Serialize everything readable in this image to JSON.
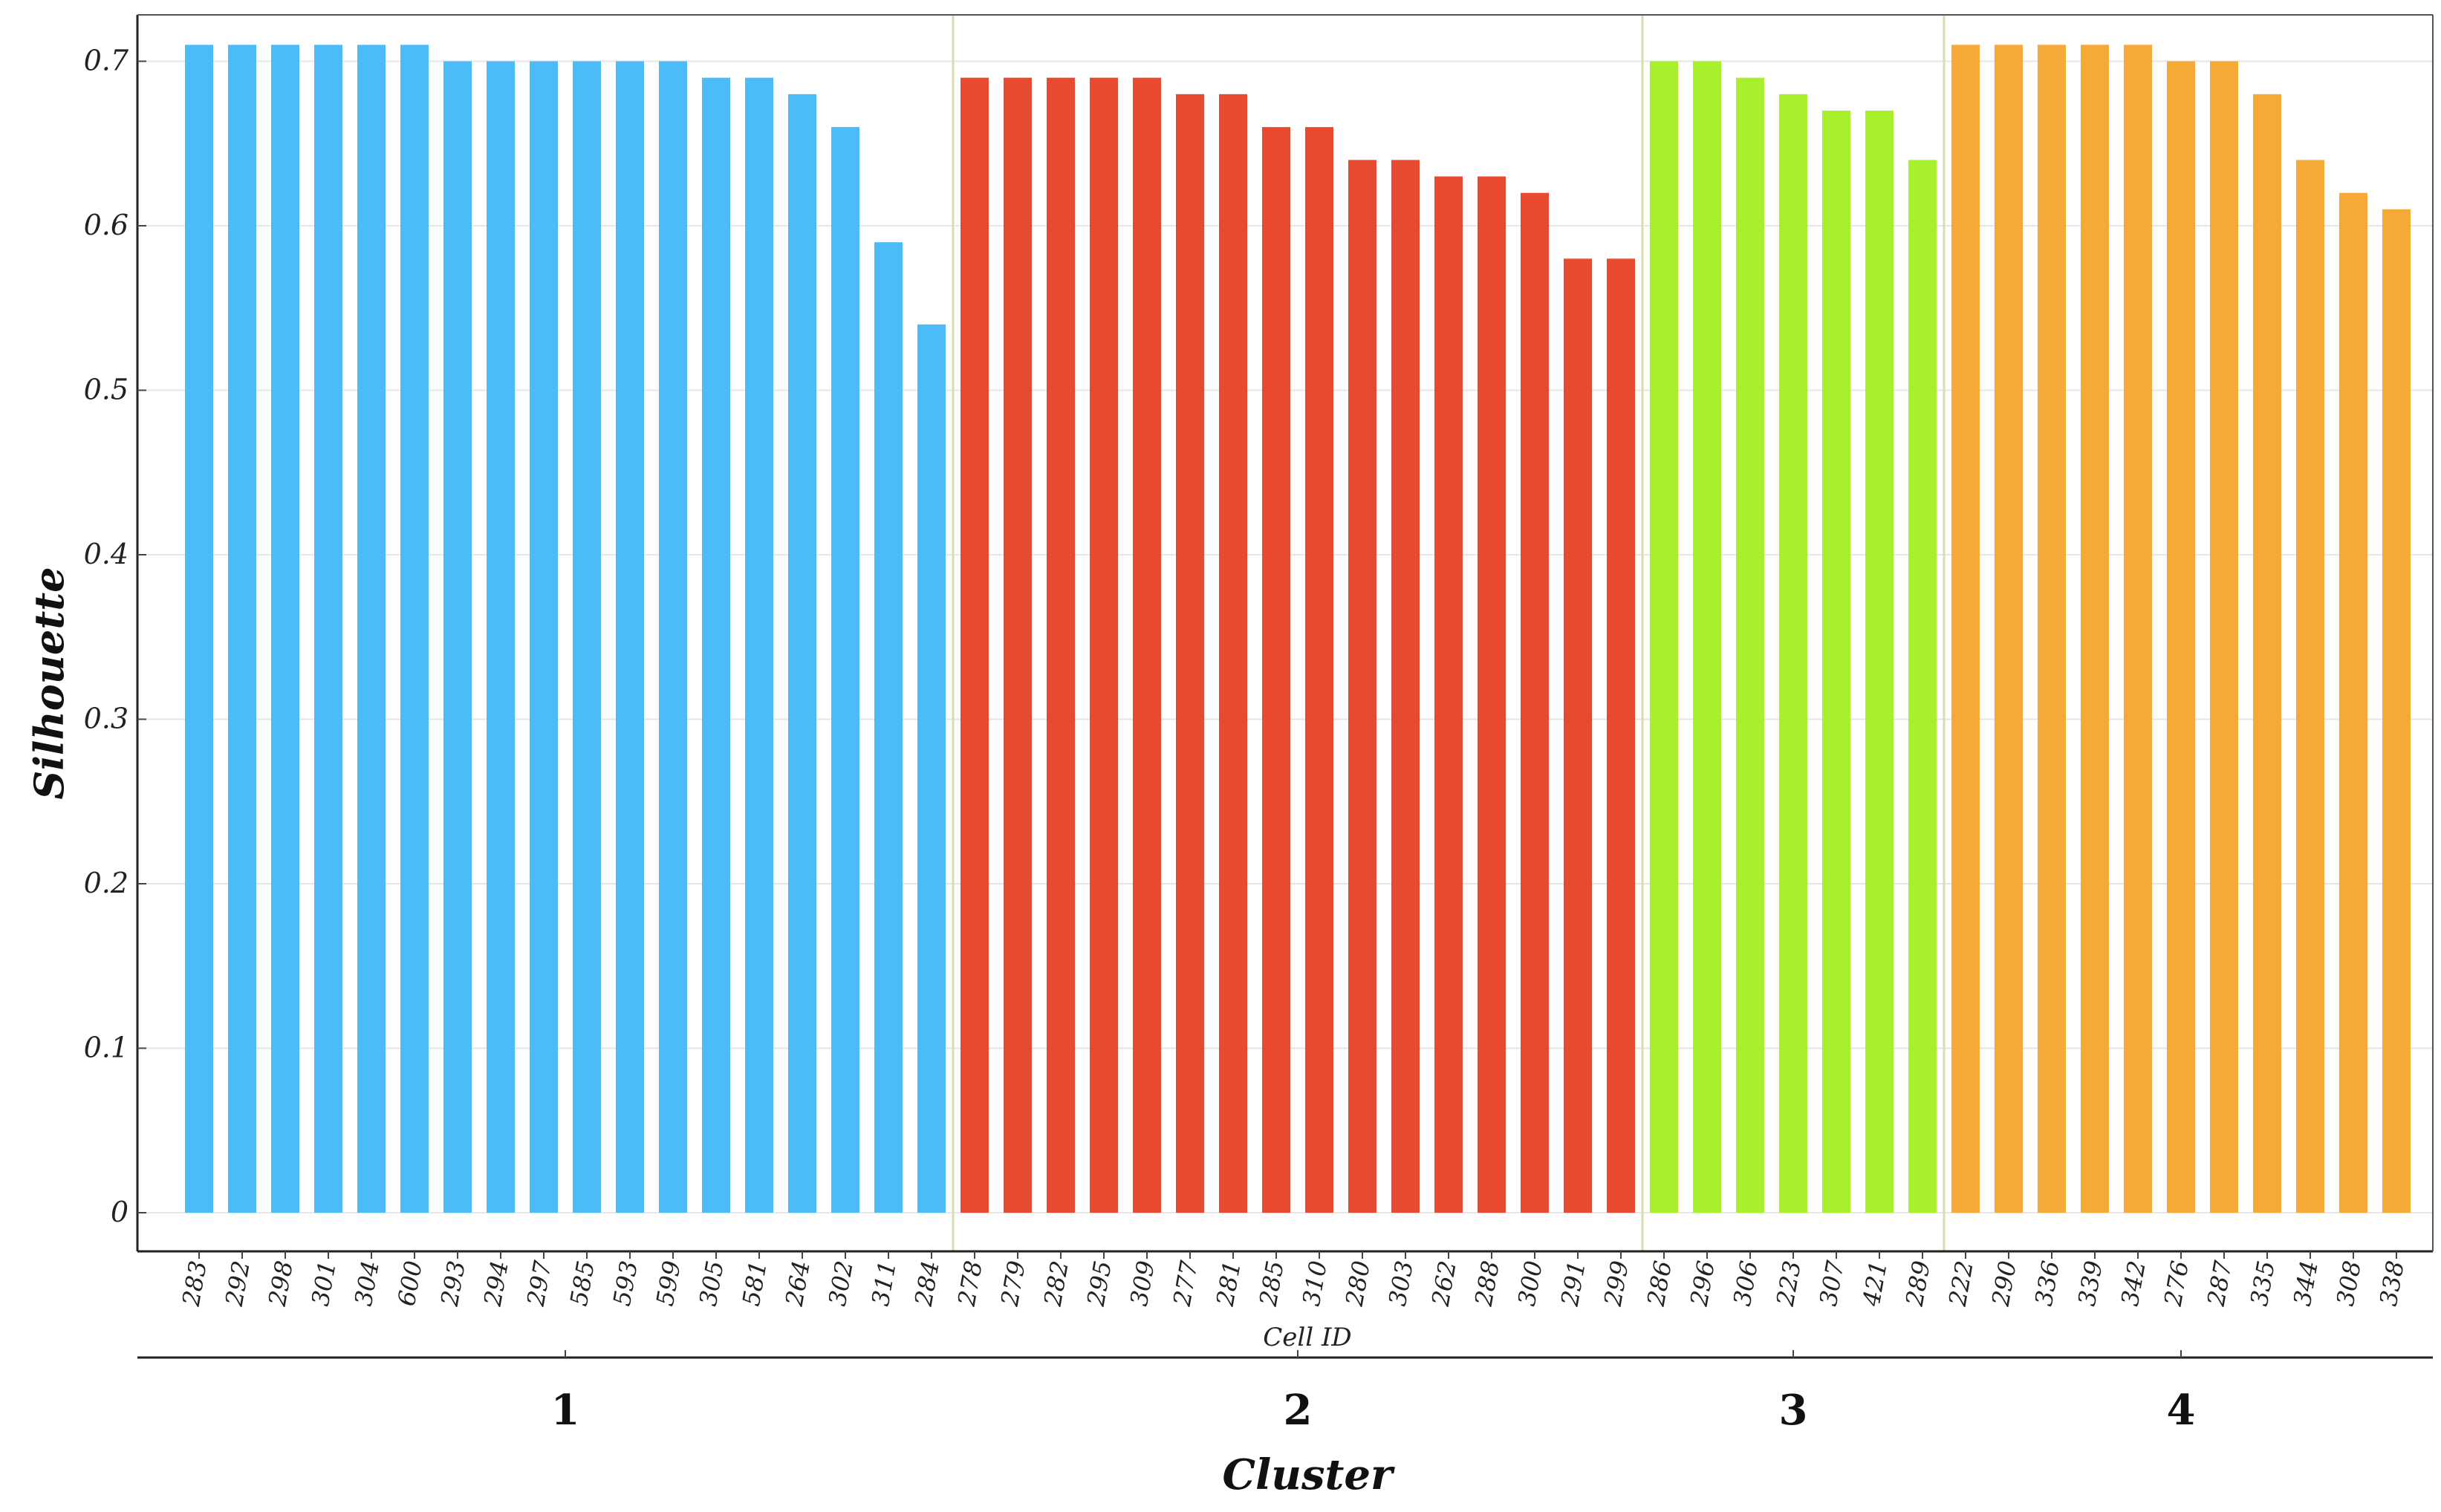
{
  "chart_data": {
    "type": "bar",
    "title": "",
    "ylabel": "Silhouette",
    "xlabel": "Cell ID",
    "group_axis_label": "Cluster",
    "ylim": [
      0,
      0.72
    ],
    "yticks": [
      "0",
      "0.1",
      "0.2",
      "0.3",
      "0.4",
      "0.5",
      "0.6",
      "0.7"
    ],
    "grid": true,
    "clusters": [
      {
        "name": "1",
        "color": "#4bbcf7",
        "categories": [
          "283",
          "292",
          "298",
          "301",
          "304",
          "600",
          "293",
          "294",
          "297",
          "585",
          "593",
          "599",
          "305",
          "581",
          "264",
          "302",
          "311",
          "284"
        ],
        "values": [
          0.71,
          0.71,
          0.71,
          0.71,
          0.71,
          0.71,
          0.7,
          0.7,
          0.7,
          0.7,
          0.7,
          0.7,
          0.69,
          0.69,
          0.68,
          0.66,
          0.59,
          0.54
        ]
      },
      {
        "name": "2",
        "color": "#e84a2f",
        "categories": [
          "278",
          "279",
          "282",
          "295",
          "309",
          "277",
          "281",
          "285",
          "310",
          "280",
          "303",
          "262",
          "288",
          "300",
          "291",
          "299"
        ],
        "values": [
          0.69,
          0.69,
          0.69,
          0.69,
          0.69,
          0.68,
          0.68,
          0.66,
          0.66,
          0.64,
          0.64,
          0.63,
          0.63,
          0.62,
          0.58,
          0.58
        ]
      },
      {
        "name": "3",
        "color": "#a8ef2c",
        "categories": [
          "286",
          "296",
          "306",
          "223",
          "307",
          "421",
          "289"
        ],
        "values": [
          0.7,
          0.7,
          0.69,
          0.68,
          0.67,
          0.67,
          0.64
        ]
      },
      {
        "name": "4",
        "color": "#f5a937",
        "categories": [
          "222",
          "290",
          "336",
          "339",
          "342",
          "276",
          "287",
          "335",
          "344",
          "308",
          "338"
        ],
        "values": [
          0.71,
          0.71,
          0.71,
          0.71,
          0.71,
          0.7,
          0.7,
          0.68,
          0.64,
          0.62,
          0.61
        ]
      }
    ]
  }
}
